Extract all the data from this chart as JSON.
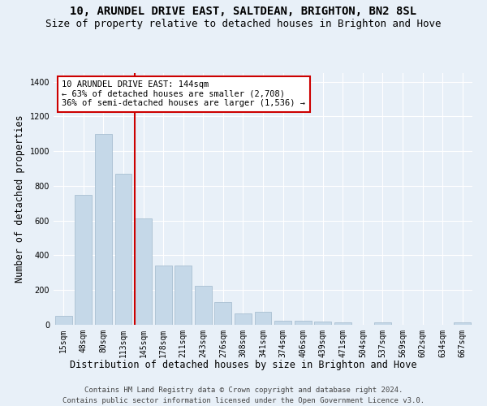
{
  "title": "10, ARUNDEL DRIVE EAST, SALTDEAN, BRIGHTON, BN2 8SL",
  "subtitle": "Size of property relative to detached houses in Brighton and Hove",
  "xlabel": "Distribution of detached houses by size in Brighton and Hove",
  "ylabel": "Number of detached properties",
  "categories": [
    "15sqm",
    "48sqm",
    "80sqm",
    "113sqm",
    "145sqm",
    "178sqm",
    "211sqm",
    "243sqm",
    "276sqm",
    "308sqm",
    "341sqm",
    "374sqm",
    "406sqm",
    "439sqm",
    "471sqm",
    "504sqm",
    "537sqm",
    "569sqm",
    "602sqm",
    "634sqm",
    "667sqm"
  ],
  "values": [
    50,
    750,
    1100,
    870,
    615,
    340,
    340,
    225,
    130,
    65,
    75,
    25,
    25,
    18,
    12,
    0,
    12,
    0,
    0,
    0,
    12
  ],
  "bar_color": "#c5d8e8",
  "bar_edge_color": "#a0b8cc",
  "vline_color": "#cc0000",
  "annotation_text": "10 ARUNDEL DRIVE EAST: 144sqm\n← 63% of detached houses are smaller (2,708)\n36% of semi-detached houses are larger (1,536) →",
  "annotation_box_color": "#ffffff",
  "annotation_box_edge": "#cc0000",
  "ylim": [
    0,
    1450
  ],
  "yticks": [
    0,
    200,
    400,
    600,
    800,
    1000,
    1200,
    1400
  ],
  "footer1": "Contains HM Land Registry data © Crown copyright and database right 2024.",
  "footer2": "Contains public sector information licensed under the Open Government Licence v3.0.",
  "bg_color": "#e8f0f8",
  "plot_bg": "#e8f0f8",
  "title_fontsize": 10,
  "subtitle_fontsize": 9,
  "axis_label_fontsize": 8.5,
  "tick_fontsize": 7,
  "footer_fontsize": 6.5,
  "annot_fontsize": 7.5
}
